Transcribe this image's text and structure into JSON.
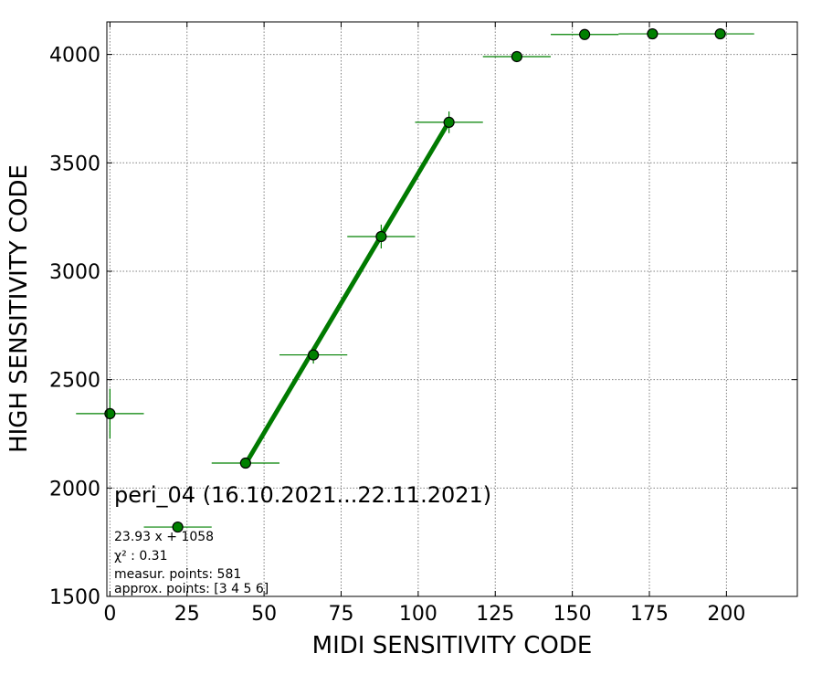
{
  "chart_data": {
    "type": "scatter",
    "title": "peri_04 (16.10.2021...22.11.2021)",
    "xlabel": "MIDI SENSITIVITY CODE",
    "ylabel": "HIGH SENSITIVITY CODE",
    "xlim": [
      -1,
      223
    ],
    "ylim": [
      1500,
      4150
    ],
    "xticks": [
      0,
      25,
      50,
      75,
      100,
      125,
      150,
      175,
      200
    ],
    "yticks": [
      1500,
      2000,
      2500,
      3000,
      3500,
      4000
    ],
    "grid": true,
    "colors": {
      "points": "#008000",
      "fit_line": "#007a00",
      "point_edge": "#000000"
    },
    "series": [
      {
        "points": [
          {
            "x": 0,
            "y": 2343,
            "xerr": 11,
            "yerr": 115
          },
          {
            "x": 22,
            "y": 1820,
            "xerr": 11,
            "yerr": 20
          },
          {
            "x": 44,
            "y": 2115,
            "xerr": 11,
            "yerr": 20
          },
          {
            "x": 66,
            "y": 2614,
            "xerr": 11,
            "yerr": 40
          },
          {
            "x": 88,
            "y": 3160,
            "xerr": 11,
            "yerr": 55
          },
          {
            "x": 110,
            "y": 3687,
            "xerr": 11,
            "yerr": 50
          },
          {
            "x": 132,
            "y": 3990,
            "xerr": 11,
            "yerr": 0
          },
          {
            "x": 154,
            "y": 4092,
            "xerr": 11,
            "yerr": 0
          },
          {
            "x": 176,
            "y": 4095,
            "xerr": 11,
            "yerr": 0
          },
          {
            "x": 198,
            "y": 4095,
            "xerr": 11,
            "yerr": 0
          }
        ]
      }
    ],
    "fit": {
      "slope": 23.93,
      "intercept": 1058,
      "x_range": [
        44,
        110
      ]
    },
    "annotations": [
      "23.93 x + 1058",
      "χ² : 0.31",
      "measur. points: 581",
      "approx. points: [3 4 5 6]"
    ]
  }
}
